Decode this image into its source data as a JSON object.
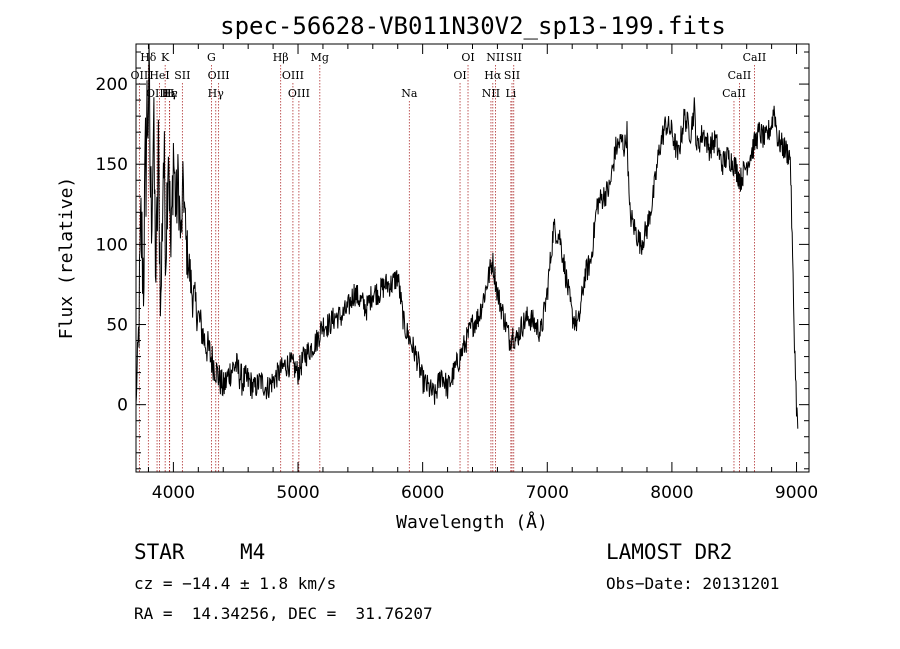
{
  "chart_data": {
    "type": "line",
    "title": "spec-56628-VB011N30V2_sp13-199.fits",
    "xlabel": "Wavelength (Å)",
    "ylabel": "Flux (relative)",
    "xlim": [
      3700,
      9100
    ],
    "ylim": [
      -42,
      225
    ],
    "xticks": [
      "4000",
      "5000",
      "6000",
      "7000",
      "8000",
      "9000"
    ],
    "yticks": [
      "0",
      "50",
      "100",
      "150",
      "200"
    ],
    "grid": false,
    "series": [
      {
        "x": [
          3700,
          3720,
          3740,
          3760,
          3780,
          3800,
          3820,
          3840,
          3860,
          3880,
          3900,
          3920,
          3940,
          3960,
          3980,
          4000,
          4020,
          4040,
          4060,
          4080,
          4100,
          4120,
          4150,
          4200,
          4250,
          4300,
          4350,
          4400,
          4450,
          4500,
          4550,
          4600,
          4650,
          4700,
          4750,
          4800,
          4850,
          4900,
          4950,
          5000,
          5050,
          5100,
          5150,
          5200,
          5250,
          5300,
          5350,
          5400,
          5450,
          5500,
          5550,
          5600,
          5650,
          5700,
          5750,
          5800,
          5850,
          5900,
          5950,
          6000,
          6050,
          6100,
          6150,
          6200,
          6250,
          6300,
          6350,
          6400,
          6450,
          6500,
          6530,
          6560,
          6600,
          6650,
          6700,
          6720,
          6750,
          6800,
          6850,
          6900,
          6950,
          7000,
          7050,
          7100,
          7150,
          7200,
          7250,
          7300,
          7350,
          7400,
          7450,
          7500,
          7550,
          7600,
          7620,
          7640,
          7660,
          7700,
          7750,
          7800,
          7850,
          7900,
          7950,
          8000,
          8050,
          8100,
          8150,
          8180,
          8200,
          8250,
          8300,
          8350,
          8400,
          8450,
          8500,
          8550,
          8600,
          8650,
          8700,
          8750,
          8800,
          8820,
          8850,
          8900,
          8950,
          8980,
          9000,
          9010
        ],
        "y": [
          0,
          40,
          110,
          80,
          160,
          200,
          120,
          170,
          80,
          150,
          60,
          160,
          100,
          170,
          90,
          160,
          120,
          140,
          100,
          140,
          100,
          90,
          70,
          55,
          40,
          30,
          20,
          10,
          20,
          25,
          15,
          15,
          10,
          15,
          10,
          15,
          20,
          25,
          25,
          20,
          30,
          35,
          40,
          50,
          50,
          55,
          55,
          60,
          70,
          65,
          60,
          70,
          70,
          75,
          75,
          80,
          50,
          40,
          30,
          15,
          10,
          5,
          20,
          10,
          20,
          30,
          40,
          50,
          55,
          70,
          80,
          90,
          70,
          55,
          40,
          45,
          40,
          50,
          55,
          50,
          45,
          70,
          110,
          105,
          80,
          55,
          50,
          80,
          90,
          125,
          130,
          135,
          160,
          165,
          160,
          170,
          120,
          110,
          100,
          110,
          130,
          160,
          175,
          170,
          155,
          180,
          170,
          185,
          160,
          170,
          160,
          165,
          150,
          155,
          150,
          140,
          150,
          160,
          170,
          165,
          175,
          185,
          165,
          160,
          155,
          50,
          0,
          -15
        ],
        "noise_amp": [
          0,
          25,
          40,
          35,
          55,
          60,
          45,
          45,
          30,
          40,
          25,
          45,
          30,
          35,
          25,
          30,
          25,
          25,
          20,
          20,
          20,
          15,
          15,
          12,
          12,
          12,
          10,
          10,
          10,
          10,
          10,
          10,
          8,
          8,
          8,
          8,
          8,
          8,
          8,
          8,
          8,
          8,
          8,
          8,
          8,
          8,
          8,
          8,
          8,
          8,
          8,
          8,
          8,
          8,
          8,
          8,
          8,
          8,
          8,
          8,
          8,
          8,
          8,
          8,
          8,
          8,
          8,
          8,
          8,
          8,
          8,
          8,
          8,
          8,
          8,
          8,
          8,
          8,
          8,
          8,
          8,
          8,
          8,
          8,
          8,
          8,
          8,
          8,
          8,
          8,
          8,
          8,
          8,
          8,
          8,
          8,
          8,
          8,
          8,
          8,
          8,
          8,
          8,
          8,
          8,
          8,
          8,
          8,
          8,
          8,
          8,
          8,
          8,
          8,
          8,
          8,
          8,
          8,
          8,
          8,
          8,
          8,
          8,
          8,
          8,
          8,
          8,
          8
        ]
      }
    ],
    "spectral_lines": [
      {
        "label": "Hδ",
        "x": 3799,
        "row": 0
      },
      {
        "label": "K",
        "x": 3934,
        "row": 0
      },
      {
        "label": "G",
        "x": 4305,
        "row": 0
      },
      {
        "label": "Hβ",
        "x": 4861,
        "row": 0
      },
      {
        "label": "Mg",
        "x": 5175,
        "row": 0
      },
      {
        "label": "OI",
        "x": 6364,
        "row": 0
      },
      {
        "label": "NII",
        "x": 6584,
        "row": 0
      },
      {
        "label": "SII",
        "x": 6731,
        "row": 0
      },
      {
        "label": "CaII",
        "x": 8662,
        "row": 0
      },
      {
        "label": "OII",
        "x": 3727,
        "row": 1
      },
      {
        "label": "HeI",
        "x": 3889,
        "row": 1
      },
      {
        "label": "SII",
        "x": 4072,
        "row": 1
      },
      {
        "label": "OIII",
        "x": 4363,
        "row": 1
      },
      {
        "label": "OIII",
        "x": 4959,
        "row": 1
      },
      {
        "label": "OI",
        "x": 6300,
        "row": 1
      },
      {
        "label": "Hα",
        "x": 6563,
        "row": 1
      },
      {
        "label": "SII",
        "x": 6717,
        "row": 1
      },
      {
        "label": "CaII",
        "x": 8542,
        "row": 1
      },
      {
        "label": "OIII",
        "x": 3869,
        "row": 2
      },
      {
        "label": "Hγ",
        "x": 3970,
        "row": 2
      },
      {
        "label": "Hε",
        "x": 3970,
        "row": 2
      },
      {
        "label": "H",
        "x": 3968,
        "row": 2
      },
      {
        "label": "Hγ",
        "x": 4340,
        "row": 2
      },
      {
        "label": "OIII",
        "x": 5007,
        "row": 2
      },
      {
        "label": "Na",
        "x": 5893,
        "row": 2
      },
      {
        "label": "NII",
        "x": 6548,
        "row": 2
      },
      {
        "label": "Li",
        "x": 6708,
        "row": 2
      },
      {
        "label": "CaII",
        "x": 8498,
        "row": 2
      }
    ]
  },
  "info": {
    "object_class": "STAR",
    "subclass": "M4",
    "survey": "LAMOST DR2",
    "cz": "cz = −14.4 ± 1.8 km/s",
    "obs_date": "Obs−Date: 20131201",
    "coords": "RA =  14.34256, DEC =  31.76207"
  }
}
